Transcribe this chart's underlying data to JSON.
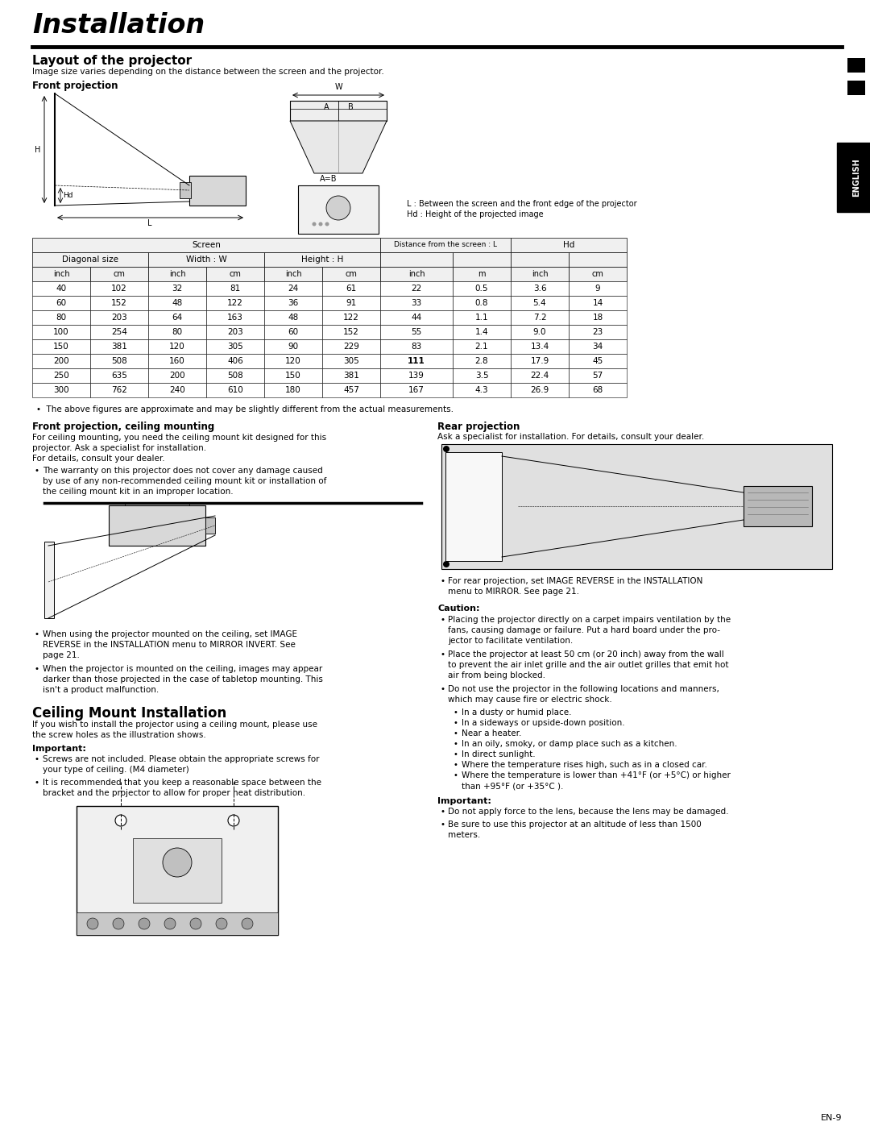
{
  "page_title": "Installation",
  "section1_title": "Layout of the projector",
  "section1_subtitle": "Image size varies depending on the distance between the screen and the projector.",
  "subsection1_title": "Front projection",
  "table_headers_row3": [
    "inch",
    "cm",
    "inch",
    "cm",
    "inch",
    "cm",
    "inch",
    "m",
    "inch",
    "cm"
  ],
  "table_data": [
    [
      "40",
      "102",
      "32",
      "81",
      "24",
      "61",
      "22",
      "0.5",
      "3.6",
      "9"
    ],
    [
      "60",
      "152",
      "48",
      "122",
      "36",
      "91",
      "33",
      "0.8",
      "5.4",
      "14"
    ],
    [
      "80",
      "203",
      "64",
      "163",
      "48",
      "122",
      "44",
      "1.1",
      "7.2",
      "18"
    ],
    [
      "100",
      "254",
      "80",
      "203",
      "60",
      "152",
      "55",
      "1.4",
      "9.0",
      "23"
    ],
    [
      "150",
      "381",
      "120",
      "305",
      "90",
      "229",
      "83",
      "2.1",
      "13.4",
      "34"
    ],
    [
      "200",
      "508",
      "160",
      "406",
      "120",
      "305",
      "111",
      "2.8",
      "17.9",
      "45"
    ],
    [
      "250",
      "635",
      "200",
      "508",
      "150",
      "381",
      "139",
      "3.5",
      "22.4",
      "57"
    ],
    [
      "300",
      "762",
      "240",
      "610",
      "180",
      "457",
      "167",
      "4.3",
      "26.9",
      "68"
    ]
  ],
  "table_note": "The above figures are approximate and may be slightly different from the actual measurements.",
  "fp_ceiling_title": "Front projection, ceiling mounting",
  "fp_ceiling_lines": [
    "For ceiling mounting, you need the ceiling mount kit designed for this",
    "projector. Ask a specialist for installation.",
    "For details, consult your dealer."
  ],
  "fp_ceiling_bullet1_lines": [
    "The warranty on this projector does not cover any damage caused",
    "by use of any non-recommended ceiling mount kit or installation of",
    "the ceiling mount kit in an improper location."
  ],
  "fp_ceiling_bullet2_lines": [
    "When using the projector mounted on the ceiling, set IMAGE",
    "REVERSE in the INSTALLATION menu to MIRROR INVERT. See",
    "page 21."
  ],
  "fp_ceiling_bullet3_lines": [
    "When the projector is mounted on the ceiling, images may appear",
    "darker than those projected in the case of tabletop mounting. This",
    "isn't a product malfunction."
  ],
  "rear_proj_title": "Rear projection",
  "rear_proj_text": "Ask a specialist for installation. For details, consult your dealer.",
  "rear_proj_bullet_lines": [
    "For rear projection, set IMAGE REVERSE in the INSTALLATION",
    "menu to MIRROR. See page 21."
  ],
  "caution_title": "Caution:",
  "caution_bullet1_lines": [
    "Placing the projector directly on a carpet impairs ventilation by the",
    "fans, causing damage or failure. Put a hard board under the pro-",
    "jector to facilitate ventilation."
  ],
  "caution_bullet2_lines": [
    "Place the projector at least 50 cm (or 20 inch) away from the wall",
    "to prevent the air inlet grille and the air outlet grilles that emit hot",
    "air from being blocked."
  ],
  "caution_bullet3_lines": [
    "Do not use the projector in the following locations and manners,",
    "which may cause fire or electric shock."
  ],
  "caution_sub_bullets": [
    "In a dusty or humid place.",
    "In a sideways or upside-down position.",
    "Near a heater.",
    "In an oily, smoky, or damp place such as a kitchen.",
    "In direct sunlight.",
    "Where the temperature rises high, such as in a closed car.",
    "Where the temperature is lower than +41°F (or +5°C) or higher",
    "than +95°F (or +35°C )."
  ],
  "ceiling_mount_title": "Ceiling Mount Installation",
  "ceiling_mount_lines": [
    "If you wish to install the projector using a ceiling mount, please use",
    "the screw holes as the illustration shows."
  ],
  "important1_title": "Important:",
  "important1_bullet1_lines": [
    "Screws are not included. Please obtain the appropriate screws for",
    "your type of ceiling. (M4 diameter)"
  ],
  "important1_bullet2_lines": [
    "It is recommended that you keep a reasonable space between the",
    "bracket and the projector to allow for proper heat distribution."
  ],
  "important2_title": "Important:",
  "important2_bullet1_lines": [
    "Do not apply force to the lens, because the lens may be damaged."
  ],
  "important2_bullet2_lines": [
    "Be sure to use this projector at an altitude of less than 1500",
    "meters."
  ],
  "page_num": "EN-9",
  "english_sidebar": "ENGLISH"
}
